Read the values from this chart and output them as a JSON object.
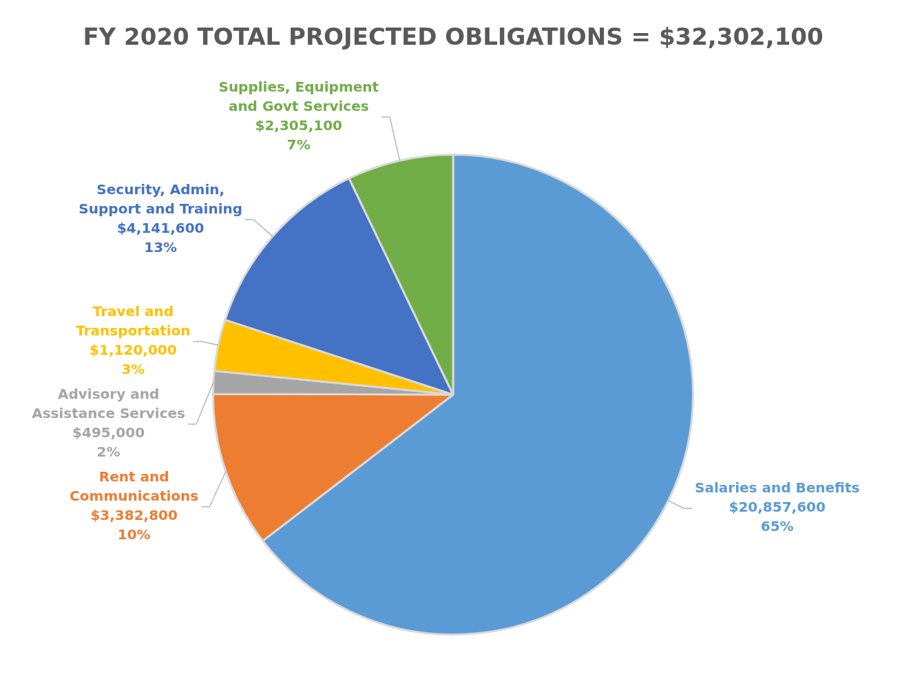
{
  "chart_data": {
    "type": "pie",
    "title": "FY 2020 TOTAL PROJECTED OBLIGATIONS = $32,302,100",
    "categories": [
      "Salaries and Benefits",
      "Rent and Communications",
      "Advisory and Assistance Services",
      "Travel and Transportation",
      "Security, Admin, Support and Training",
      "Supplies, Equipment and Govt Services"
    ],
    "values": [
      20857600,
      3382800,
      495000,
      1120000,
      4141600,
      2305100
    ],
    "colors": [
      "#5b9bd5",
      "#ed7d31",
      "#a5a5a5",
      "#ffc000",
      "#4472c4",
      "#70ad47"
    ],
    "value_labels": [
      "$20,857,600\n65%",
      "$3,382,800\n10%",
      "$495,000\n2%",
      "$1,120,000\n3%",
      "$4,141,600\n13%",
      "$2,305,100\n7%"
    ],
    "legend": false
  }
}
